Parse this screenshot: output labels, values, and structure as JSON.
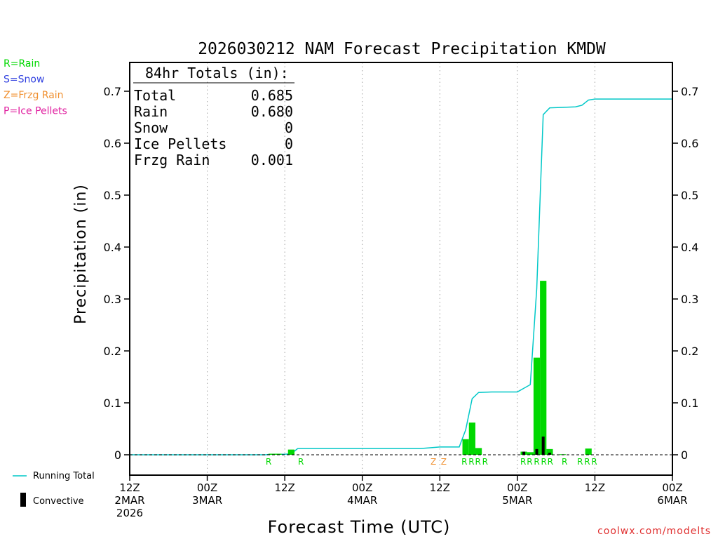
{
  "chart_data": {
    "type": "bar",
    "title": "2026030212 NAM Forecast Precipitation KMDW",
    "xlabel": "Forecast Time (UTC)",
    "ylabel": "Precipitation (in)",
    "x_unit": "forecast hour",
    "xlim": [
      0,
      84
    ],
    "ylim": [
      -0.04,
      0.75
    ],
    "yticks": [
      0,
      0.1,
      0.2,
      0.3,
      0.4,
      0.5,
      0.6,
      0.7
    ],
    "ytick_labels": [
      "0",
      "0.1",
      "0.2",
      "0.3",
      "0.4",
      "0.5",
      "0.6",
      "0.7"
    ],
    "xticks": [
      {
        "x": 0,
        "lines": [
          "12Z",
          "2MAR",
          "2026"
        ]
      },
      {
        "x": 12,
        "lines": [
          "00Z",
          "3MAR"
        ]
      },
      {
        "x": 24,
        "lines": [
          "12Z"
        ]
      },
      {
        "x": 36,
        "lines": [
          "00Z",
          "4MAR"
        ]
      },
      {
        "x": 48,
        "lines": [
          "12Z"
        ]
      },
      {
        "x": 60,
        "lines": [
          "00Z",
          "5MAR"
        ]
      },
      {
        "x": 72,
        "lines": [
          "12Z"
        ]
      },
      {
        "x": 84,
        "lines": [
          "00Z",
          "6MAR"
        ]
      }
    ],
    "grid_x": [
      12,
      24,
      36,
      48,
      60,
      72
    ],
    "series": [
      {
        "name": "Running Total",
        "type": "line",
        "color": "#00c8c8",
        "points": [
          [
            0,
            0
          ],
          [
            21,
            0
          ],
          [
            22,
            0.001
          ],
          [
            24,
            0.001
          ],
          [
            25,
            0.002
          ],
          [
            26,
            0.012
          ],
          [
            30,
            0.012
          ],
          [
            45,
            0.012
          ],
          [
            46,
            0.013
          ],
          [
            48,
            0.015
          ],
          [
            51,
            0.015
          ],
          [
            52,
            0.048
          ],
          [
            53,
            0.108
          ],
          [
            54,
            0.12
          ],
          [
            56,
            0.121
          ],
          [
            60,
            0.121
          ],
          [
            61,
            0.128
          ],
          [
            62,
            0.135
          ],
          [
            63,
            0.32
          ],
          [
            64,
            0.655
          ],
          [
            65,
            0.668
          ],
          [
            67,
            0.669
          ],
          [
            69,
            0.67
          ],
          [
            70,
            0.673
          ],
          [
            71,
            0.683
          ],
          [
            72,
            0.685
          ],
          [
            84,
            0.685
          ]
        ]
      },
      {
        "name": "Total",
        "type": "bar",
        "color": "#00d800",
        "bars": [
          {
            "x": 22,
            "value": 0.002
          },
          {
            "x": 23,
            "value": 0.002
          },
          {
            "x": 25,
            "value": 0.01
          },
          {
            "x": 52,
            "value": 0.03
          },
          {
            "x": 53,
            "value": 0.062
          },
          {
            "x": 54,
            "value": 0.013
          },
          {
            "x": 61,
            "value": 0.006
          },
          {
            "x": 62,
            "value": 0.005
          },
          {
            "x": 63,
            "value": 0.187
          },
          {
            "x": 64,
            "value": 0.335
          },
          {
            "x": 65,
            "value": 0.011
          },
          {
            "x": 67,
            "value": 0.001
          },
          {
            "x": 71,
            "value": 0.012
          }
        ]
      },
      {
        "name": "Convective",
        "type": "bar",
        "color": "#000000",
        "bars": [
          {
            "x": 61,
            "value": 0.006
          },
          {
            "x": 63,
            "value": 0.011
          },
          {
            "x": 64,
            "value": 0.035
          },
          {
            "x": 65,
            "value": 0.004
          }
        ]
      }
    ],
    "ptype_markers": [
      {
        "x": 21.5,
        "label": "R",
        "color": "#00d800"
      },
      {
        "x": 26.5,
        "label": "R",
        "color": "#00d800"
      },
      {
        "x": 47,
        "label": "Z",
        "color": "#f09030"
      },
      {
        "x": 48.6,
        "label": "Z",
        "color": "#f09030"
      },
      {
        "x": 51.8,
        "label": "R",
        "color": "#00d800"
      },
      {
        "x": 52.9,
        "label": "R",
        "color": "#00d800"
      },
      {
        "x": 53.9,
        "label": "R",
        "color": "#00d800"
      },
      {
        "x": 55,
        "label": "R",
        "color": "#00d800"
      },
      {
        "x": 60.9,
        "label": "R",
        "color": "#00d800"
      },
      {
        "x": 61.9,
        "label": "R",
        "color": "#00d800"
      },
      {
        "x": 63,
        "label": "R",
        "color": "#00d800"
      },
      {
        "x": 64.1,
        "label": "R",
        "color": "#00d800"
      },
      {
        "x": 65.1,
        "label": "R",
        "color": "#00d800"
      },
      {
        "x": 67.3,
        "label": "R",
        "color": "#00d800"
      },
      {
        "x": 69.7,
        "label": "R",
        "color": "#00d800"
      },
      {
        "x": 70.8,
        "label": "R",
        "color": "#00d800"
      },
      {
        "x": 71.9,
        "label": "R",
        "color": "#00d800"
      }
    ],
    "totals_box": {
      "title": "84hr Totals (in):",
      "rows": [
        {
          "label": "Total",
          "value": "0.685"
        },
        {
          "label": "Rain",
          "value": "0.680"
        },
        {
          "label": "Snow",
          "value": "0"
        },
        {
          "label": "Ice Pellets",
          "value": "0"
        },
        {
          "label": "Frzg Rain",
          "value": "0.001"
        }
      ]
    },
    "ptype_legend": [
      {
        "text": "R=Rain",
        "color": "#00d800"
      },
      {
        "text": "S=Snow",
        "color": "#3040e0"
      },
      {
        "text": "Z=Frzg Rain",
        "color": "#f09030"
      },
      {
        "text": "P=Ice Pellets",
        "color": "#e020a0"
      }
    ],
    "series_legend": {
      "running_total": "Running Total",
      "convective": "Convective"
    },
    "credit": "coolwx.com/modelts"
  }
}
